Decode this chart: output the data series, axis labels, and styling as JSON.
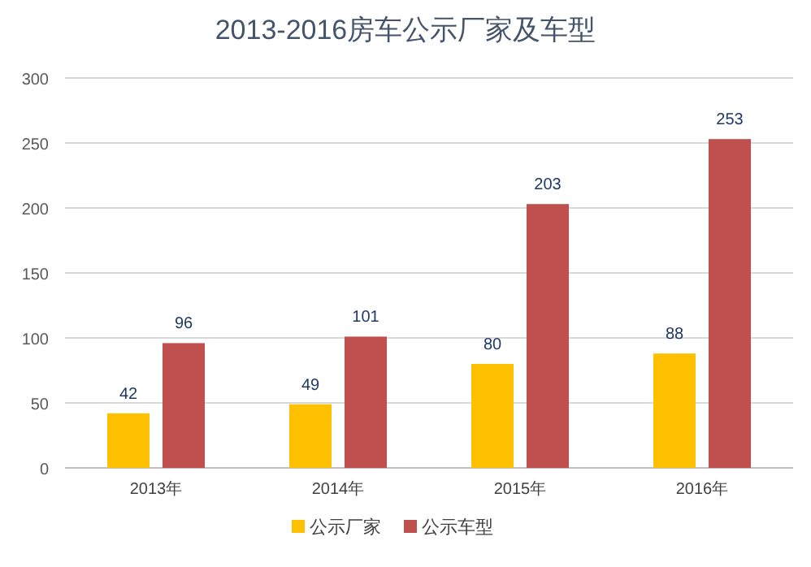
{
  "chart_data": {
    "type": "bar",
    "title": "2013-2016房车公示厂家及车型",
    "categories": [
      "2013年",
      "2014年",
      "2015年",
      "2016年"
    ],
    "series": [
      {
        "name": "公示厂家",
        "color": "#ffc000",
        "values": [
          42,
          49,
          80,
          88
        ]
      },
      {
        "name": "公示车型",
        "color": "#c0504d",
        "values": [
          96,
          101,
          203,
          253
        ]
      }
    ],
    "ylim": [
      0,
      300
    ],
    "yticks": [
      0,
      50,
      100,
      150,
      200,
      250,
      300
    ],
    "grid": "y",
    "legend": "bottom",
    "data_labels": true
  }
}
